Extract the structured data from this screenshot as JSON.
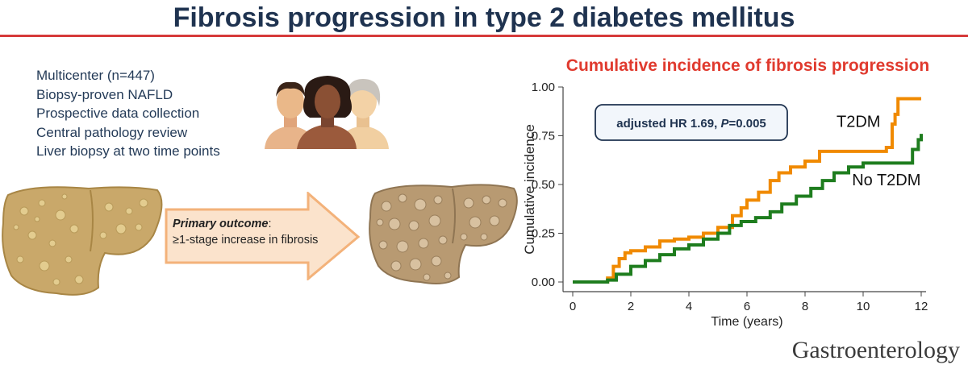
{
  "header": {
    "title": "Fibrosis progression in type 2 diabetes mellitus"
  },
  "study_points": [
    "Multicenter (n=447)",
    "Biopsy-proven NAFLD",
    "Prospective data collection",
    "Central pathology review",
    "Liver biopsy at two time points"
  ],
  "outcome": {
    "label": "Primary outcome",
    "suffix": ":",
    "text": "≥1-stage increase in fibrosis"
  },
  "colors": {
    "title": "#1f3350",
    "accent_red": "#d63a3a",
    "t2dm": "#f08a00",
    "no_t2dm": "#1e7d1e",
    "arrow_fill": "#fbe3cc",
    "arrow_stroke": "#f3b27a"
  },
  "chart_data": {
    "type": "line",
    "title": "Cumulative incidence of fibrosis progression",
    "xlabel": "Time (years)",
    "ylabel": "Cumulative incidence",
    "xlim": [
      0,
      12
    ],
    "ylim": [
      0,
      1
    ],
    "xticks": [
      "0",
      "2",
      "4",
      "6",
      "8",
      "10",
      "12"
    ],
    "yticks": [
      "0.00",
      "0.25",
      "0.50",
      "0.75",
      "1.00"
    ],
    "annotation": {
      "text_prefix": "adjusted HR 1.69, ",
      "p_label": "P",
      "p_value": "=0.005"
    },
    "grid": false,
    "series": [
      {
        "name": "T2DM",
        "color": "#f08a00",
        "points": [
          [
            0,
            0
          ],
          [
            1,
            0
          ],
          [
            1.2,
            0.02
          ],
          [
            1.4,
            0.08
          ],
          [
            1.6,
            0.12
          ],
          [
            1.8,
            0.15
          ],
          [
            2,
            0.16
          ],
          [
            2.5,
            0.18
          ],
          [
            3,
            0.21
          ],
          [
            3.5,
            0.22
          ],
          [
            4,
            0.23
          ],
          [
            4.5,
            0.25
          ],
          [
            5,
            0.28
          ],
          [
            5.5,
            0.34
          ],
          [
            5.8,
            0.38
          ],
          [
            6,
            0.42
          ],
          [
            6.4,
            0.46
          ],
          [
            6.8,
            0.52
          ],
          [
            7.1,
            0.56
          ],
          [
            7.5,
            0.59
          ],
          [
            8,
            0.62
          ],
          [
            8.5,
            0.67
          ],
          [
            9,
            0.67
          ],
          [
            10,
            0.67
          ],
          [
            10.8,
            0.69
          ],
          [
            11,
            0.81
          ],
          [
            11.1,
            0.86
          ],
          [
            11.2,
            0.94
          ],
          [
            12,
            0.94
          ]
        ]
      },
      {
        "name": "No T2DM",
        "color": "#1e7d1e",
        "points": [
          [
            0,
            0
          ],
          [
            1,
            0
          ],
          [
            1.2,
            0.01
          ],
          [
            1.5,
            0.04
          ],
          [
            2,
            0.08
          ],
          [
            2.5,
            0.11
          ],
          [
            3,
            0.14
          ],
          [
            3.5,
            0.17
          ],
          [
            4,
            0.19
          ],
          [
            4.5,
            0.22
          ],
          [
            5,
            0.25
          ],
          [
            5.4,
            0.29
          ],
          [
            5.8,
            0.31
          ],
          [
            6.3,
            0.33
          ],
          [
            6.8,
            0.36
          ],
          [
            7.2,
            0.4
          ],
          [
            7.7,
            0.44
          ],
          [
            8.2,
            0.48
          ],
          [
            8.6,
            0.52
          ],
          [
            9,
            0.56
          ],
          [
            9.5,
            0.59
          ],
          [
            10,
            0.61
          ],
          [
            11,
            0.61
          ],
          [
            11.6,
            0.61
          ],
          [
            11.7,
            0.68
          ],
          [
            11.9,
            0.73
          ],
          [
            12,
            0.76
          ]
        ]
      }
    ]
  },
  "journal": {
    "name": "Gastroenterology"
  }
}
